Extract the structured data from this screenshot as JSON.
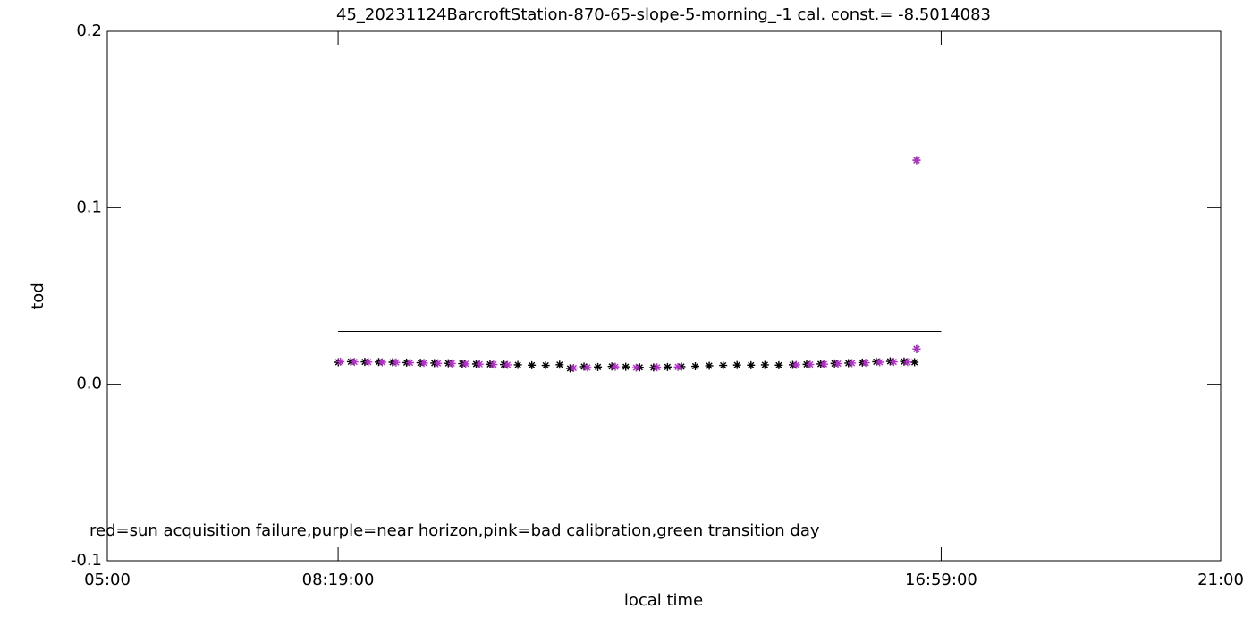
{
  "chart_data": {
    "type": "scatter",
    "title": "45_20231124BarcroftStation-870-65-slope-5-morning_-1 cal. const.= -8.5014083",
    "x_label": "local time",
    "y_label": "tod",
    "annotation": "red=sun acquisition failure,purple=near horizon,pink=bad calibration,green transition day",
    "xlim": [
      5,
      21
    ],
    "xticks": [
      {
        "value": 5,
        "label": "05:00"
      },
      {
        "value": 8.3167,
        "label": "08:19:00"
      },
      {
        "value": 16.9833,
        "label": "16:59:00"
      },
      {
        "value": 21,
        "label": "21:00"
      }
    ],
    "ylim": [
      -0.1,
      0.2
    ],
    "yticks": [
      {
        "value": -0.1,
        "label": "-0.1"
      },
      {
        "value": 0,
        "label": "0.0"
      },
      {
        "value": 0.1,
        "label": "0.1"
      },
      {
        "value": 0.2,
        "label": "0.2"
      }
    ],
    "reference_line": {
      "x": [
        8.3167,
        16.9833
      ],
      "y": 0.03,
      "color": "#000000"
    },
    "series": [
      {
        "color": "#000000",
        "x": [
          8.32,
          8.5,
          8.7,
          8.9,
          9.1,
          9.3,
          9.5,
          9.7,
          9.9,
          10.1,
          10.3,
          10.5,
          10.7,
          10.9,
          11.1,
          11.3,
          11.5,
          11.65,
          11.85,
          12.05,
          12.25,
          12.45,
          12.65,
          12.85,
          13.05,
          13.25,
          13.45,
          13.65,
          13.85,
          14.05,
          14.25,
          14.45,
          14.65,
          14.85,
          15.05,
          15.25,
          15.45,
          15.65,
          15.85,
          16.05,
          16.25,
          16.45,
          16.6,
          16.63,
          16.63
        ],
        "values": [
          0.0125,
          0.0128,
          0.0127,
          0.0126,
          0.0125,
          0.0123,
          0.0122,
          0.012,
          0.0119,
          0.0117,
          0.0115,
          0.0113,
          0.0112,
          0.011,
          0.0108,
          0.0107,
          0.0111,
          0.009,
          0.01,
          0.0098,
          0.0101,
          0.0099,
          0.0096,
          0.0095,
          0.0098,
          0.01,
          0.0102,
          0.0105,
          0.0107,
          0.0109,
          0.0108,
          0.011,
          0.0108,
          0.011,
          0.0113,
          0.0115,
          0.0118,
          0.012,
          0.0123,
          0.0128,
          0.013,
          0.0129,
          0.0125,
          0.02,
          0.127
        ]
      },
      {
        "color": "#b52ccc",
        "x": [
          8.35,
          8.55,
          8.75,
          8.95,
          9.15,
          9.35,
          9.55,
          9.75,
          9.95,
          10.15,
          10.35,
          10.55,
          10.75,
          11.7,
          11.9,
          12.3,
          12.6,
          12.9,
          13.2,
          14.9,
          15.1,
          15.3,
          15.5,
          15.7,
          15.9,
          16.1,
          16.3,
          16.5,
          16.63,
          16.63
        ],
        "values": [
          0.0128,
          0.0127,
          0.0126,
          0.0125,
          0.0124,
          0.0122,
          0.0121,
          0.0119,
          0.0118,
          0.0116,
          0.0114,
          0.0112,
          0.011,
          0.0092,
          0.0095,
          0.0099,
          0.0094,
          0.0096,
          0.0098,
          0.011,
          0.0112,
          0.0114,
          0.0117,
          0.012,
          0.0122,
          0.0125,
          0.0127,
          0.0126,
          0.02,
          0.127
        ]
      }
    ]
  }
}
